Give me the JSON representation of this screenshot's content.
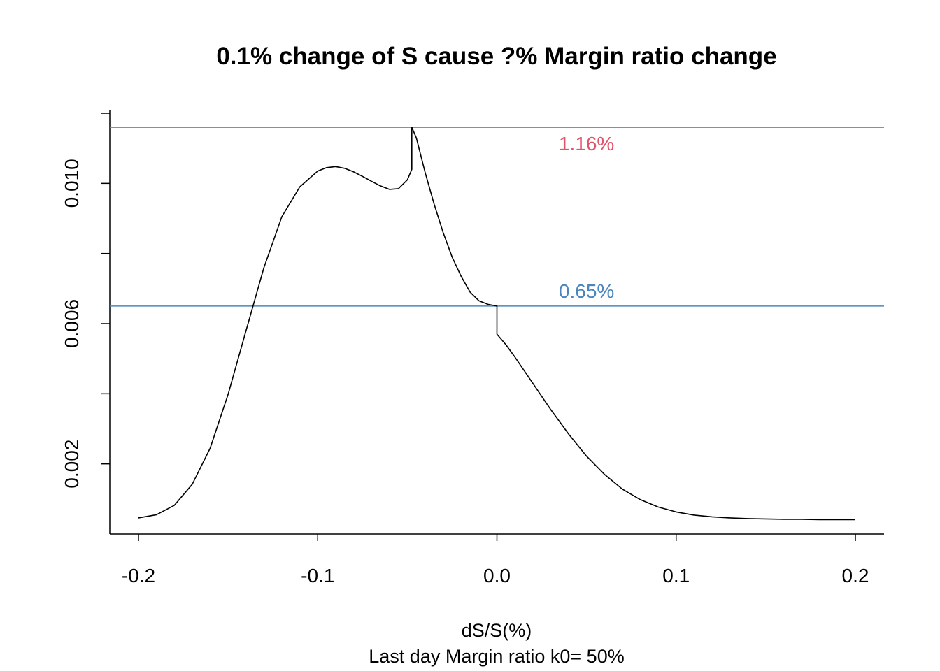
{
  "chart_data": {
    "type": "line",
    "title": "0.1% change of S cause ?% Margin ratio change",
    "xlabel": "dS/S(%)",
    "subtitle": "Last day Margin ratio k0= 50%",
    "ylabel": "",
    "xlim": [
      -0.216,
      0.216
    ],
    "ylim": [
      0.0,
      0.0121
    ],
    "x_ticks": [
      -0.2,
      -0.1,
      0.0,
      0.1,
      0.2
    ],
    "x_tick_labels": [
      "-0.2",
      "-0.1",
      "0.0",
      "0.1",
      "0.2"
    ],
    "y_ticks": [
      0.002,
      0.004,
      0.006,
      0.008,
      0.01,
      0.012
    ],
    "y_tick_labels": [
      "0.002",
      "",
      "0.006",
      "",
      "0.010",
      ""
    ],
    "grid": false,
    "legend": "none",
    "hlines": [
      {
        "y": 0.0116,
        "color": "#DF536B",
        "label": "1.16%",
        "label_x": 0.05,
        "label_pos": "below"
      },
      {
        "y": 0.0065,
        "color": "#4A86BD",
        "label": "0.65%",
        "label_x": 0.05,
        "label_pos": "above"
      }
    ],
    "series": [
      {
        "color": "#000000",
        "x": [
          -0.2,
          -0.19,
          -0.18,
          -0.17,
          -0.16,
          -0.15,
          -0.14,
          -0.13,
          -0.12,
          -0.11,
          -0.1,
          -0.095,
          -0.09,
          -0.085,
          -0.08,
          -0.075,
          -0.07,
          -0.065,
          -0.06,
          -0.055,
          -0.05,
          -0.0475,
          -0.0475,
          -0.045,
          -0.04,
          -0.035,
          -0.03,
          -0.025,
          -0.02,
          -0.015,
          -0.01,
          -0.005,
          0.0,
          0.0,
          0.005,
          0.01,
          0.02,
          0.03,
          0.04,
          0.05,
          0.06,
          0.07,
          0.08,
          0.09,
          0.1,
          0.11,
          0.12,
          0.13,
          0.14,
          0.15,
          0.16,
          0.17,
          0.18,
          0.19,
          0.2
        ],
        "y": [
          0.00046,
          0.00055,
          0.00082,
          0.00142,
          0.00245,
          0.00398,
          0.0058,
          0.0076,
          0.00905,
          0.0099,
          0.01035,
          0.01045,
          0.01048,
          0.01043,
          0.01033,
          0.0102,
          0.01006,
          0.00993,
          0.00983,
          0.00985,
          0.0101,
          0.0104,
          0.0116,
          0.0113,
          0.0103,
          0.0094,
          0.0086,
          0.0079,
          0.00735,
          0.0069,
          0.00665,
          0.00655,
          0.0065,
          0.0057,
          0.0054,
          0.00505,
          0.0043,
          0.00355,
          0.00285,
          0.00222,
          0.0017,
          0.00128,
          0.00098,
          0.00077,
          0.00063,
          0.00054,
          0.00049,
          0.00046,
          0.00044,
          0.00043,
          0.00042,
          0.00042,
          0.00041,
          0.00041,
          0.00041
        ]
      }
    ]
  }
}
